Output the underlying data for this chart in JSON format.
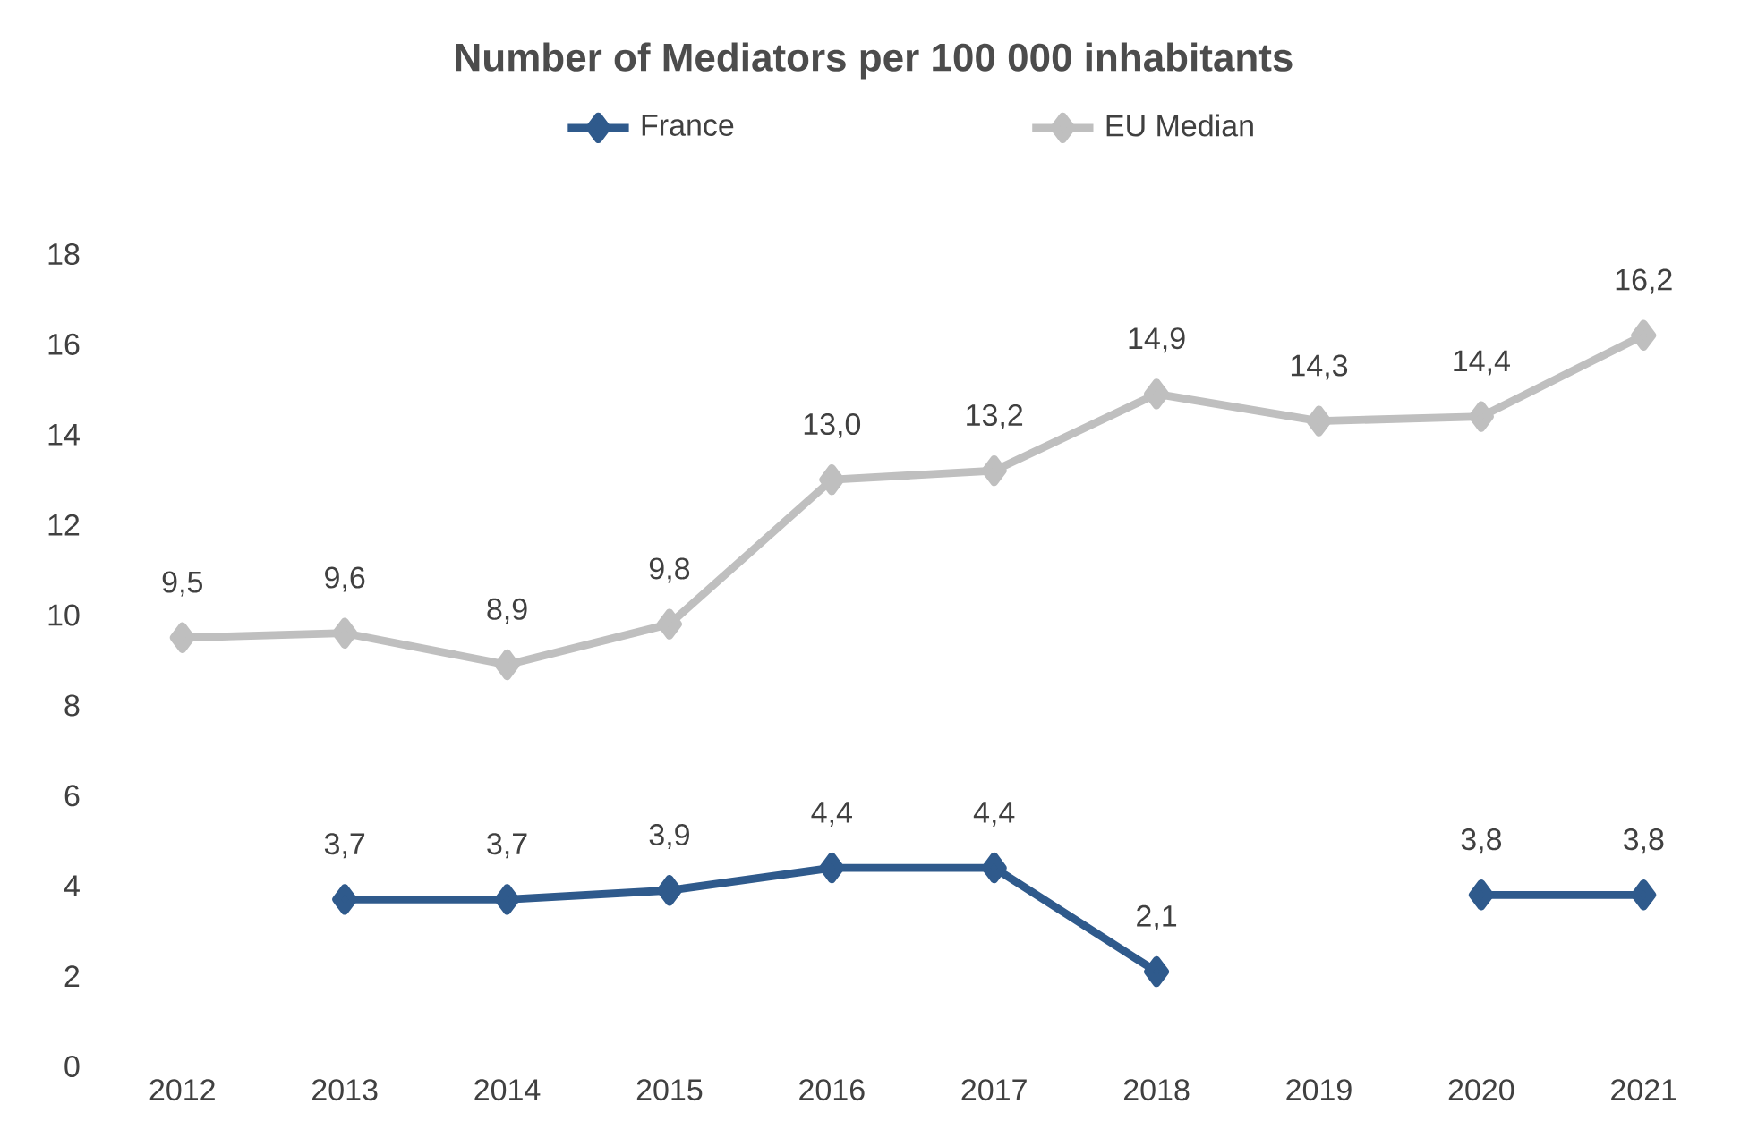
{
  "chart_data": {
    "type": "line",
    "title": "Number of Mediators per 100 000 inhabitants",
    "categories": [
      "2012",
      "2013",
      "2014",
      "2015",
      "2016",
      "2017",
      "2018",
      "2019",
      "2020",
      "2021"
    ],
    "series": [
      {
        "name": "France",
        "color": "#2f5a8c",
        "values": [
          null,
          3.7,
          3.7,
          3.9,
          4.4,
          4.4,
          2.1,
          null,
          3.8,
          3.8
        ],
        "value_labels": [
          null,
          "3,7",
          "3,7",
          "3,9",
          "4,4",
          "4,4",
          "2,1",
          null,
          "3,8",
          "3,8"
        ]
      },
      {
        "name": "EU Median",
        "color": "#bfbfbf",
        "values": [
          9.5,
          9.6,
          8.9,
          9.8,
          13.0,
          13.2,
          14.9,
          14.3,
          14.4,
          16.2
        ],
        "value_labels": [
          "9,5",
          "9,6",
          "8,9",
          "9,8",
          "13,0",
          "13,2",
          "14,9",
          "14,3",
          "14,4",
          "16,2"
        ]
      }
    ],
    "ylim": [
      0,
      18
    ],
    "yticks": [
      0,
      2,
      4,
      6,
      8,
      10,
      12,
      14,
      16,
      18
    ],
    "grid": false,
    "legend": "top",
    "marker": "diamond",
    "line_style": "solid"
  }
}
